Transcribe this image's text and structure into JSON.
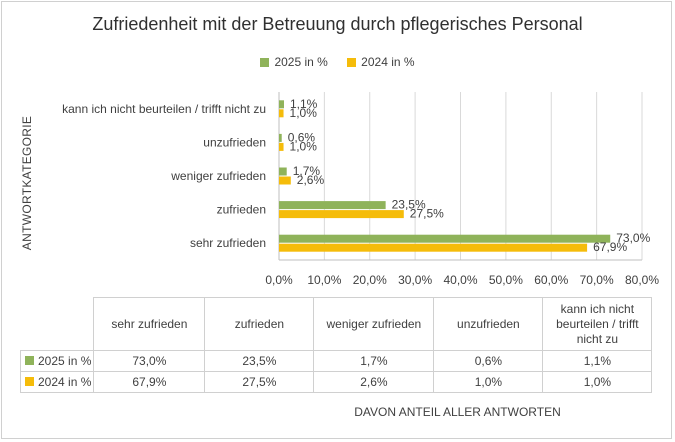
{
  "chart_data": {
    "type": "bar",
    "orientation": "horizontal",
    "title": "Zufriedenheit mit der Betreuung durch pflegerisches Personal",
    "ylabel": "ANTWORTKATEGORIE",
    "xlabel": "DAVON ANTEIL ALLER ANTWORTEN",
    "categories": [
      "kann ich nicht beurteilen / trifft nicht zu",
      "unzufrieden",
      "weniger zufrieden",
      "zufrieden",
      "sehr zufrieden"
    ],
    "series": [
      {
        "name": "2025 in %",
        "color": "#8fb35a",
        "values": [
          1.1,
          0.6,
          1.7,
          23.5,
          73.0
        ],
        "labels": [
          "1,1%",
          "0,6%",
          "1,7%",
          "23,5%",
          "73,0%"
        ]
      },
      {
        "name": "2024 in %",
        "color": "#f5bc0a",
        "values": [
          1.0,
          1.0,
          2.6,
          27.5,
          67.9
        ],
        "labels": [
          "1,0%",
          "1,0%",
          "2,6%",
          "27,5%",
          "67,9%"
        ]
      }
    ],
    "xlim": [
      0,
      80
    ],
    "xticks": [
      "0,0%",
      "10,0%",
      "20,0%",
      "30,0%",
      "40,0%",
      "50,0%",
      "60,0%",
      "70,0%",
      "80,0%"
    ],
    "grid": true,
    "legend_position": "top"
  },
  "table": {
    "headers": [
      "sehr zufrieden",
      "zufrieden",
      "weniger zufrieden",
      "unzufrieden",
      "kann ich nicht beurteilen / trifft nicht zu"
    ],
    "rows": [
      {
        "key": "2025 in %",
        "values": [
          "73,0%",
          "23,5%",
          "1,7%",
          "0,6%",
          "1,1%"
        ]
      },
      {
        "key": "2024 in %",
        "values": [
          "67,9%",
          "27,5%",
          "2,6%",
          "1,0%",
          "1,0%"
        ]
      }
    ]
  }
}
